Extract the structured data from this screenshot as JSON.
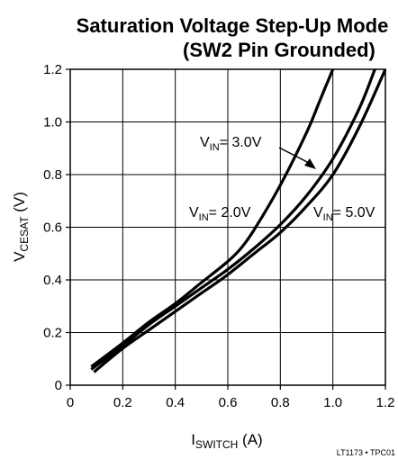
{
  "chart_data": {
    "type": "line",
    "title_lines": [
      "Saturation Voltage Step-Up Mode",
      "(SW2 Pin Grounded)"
    ],
    "xlabel": {
      "main": "I",
      "sub": "SWITCH",
      "unit": " (A)"
    },
    "ylabel": {
      "main": "V",
      "sub": "CESAT",
      "unit": " (V)"
    },
    "xlim": [
      0,
      1.2
    ],
    "ylim": [
      0,
      1.2
    ],
    "xticks": [
      0,
      0.2,
      0.4,
      0.6,
      0.8,
      1.0,
      1.2
    ],
    "xtick_labels": [
      "0",
      "0.2",
      "0.4",
      "0.6",
      "0.8",
      "1.0",
      "1.2"
    ],
    "yticks": [
      0,
      0.2,
      0.4,
      0.6,
      0.8,
      1.0,
      1.2
    ],
    "ytick_labels": [
      "0",
      "0.2",
      "0.4",
      "0.6",
      "0.8",
      "1.0",
      "1.2"
    ],
    "grid": true,
    "series": [
      {
        "label": {
          "main": "V",
          "sub": "IN",
          "value": "= 2.0V"
        },
        "x": [
          0.08,
          0.2,
          0.3,
          0.4,
          0.5,
          0.6,
          0.65,
          0.7,
          0.8,
          0.9,
          0.95,
          1.0
        ],
        "y": [
          0.07,
          0.16,
          0.24,
          0.31,
          0.39,
          0.47,
          0.52,
          0.59,
          0.76,
          0.96,
          1.08,
          1.2
        ]
      },
      {
        "label": {
          "main": "V",
          "sub": "IN",
          "value": "= 3.0V"
        },
        "x": [
          0.08,
          0.2,
          0.3,
          0.4,
          0.5,
          0.6,
          0.7,
          0.8,
          0.9,
          1.0,
          1.1,
          1.16
        ],
        "y": [
          0.06,
          0.15,
          0.23,
          0.3,
          0.37,
          0.44,
          0.52,
          0.61,
          0.72,
          0.86,
          1.05,
          1.2
        ]
      },
      {
        "label": {
          "main": "V",
          "sub": "IN",
          "value": "= 5.0V"
        },
        "x": [
          0.09,
          0.2,
          0.3,
          0.4,
          0.5,
          0.6,
          0.7,
          0.8,
          0.9,
          1.0,
          1.1,
          1.2
        ],
        "y": [
          0.05,
          0.14,
          0.21,
          0.28,
          0.35,
          0.42,
          0.5,
          0.58,
          0.68,
          0.8,
          0.98,
          1.2
        ]
      }
    ]
  },
  "footnote": "LT1173 • TPC01"
}
